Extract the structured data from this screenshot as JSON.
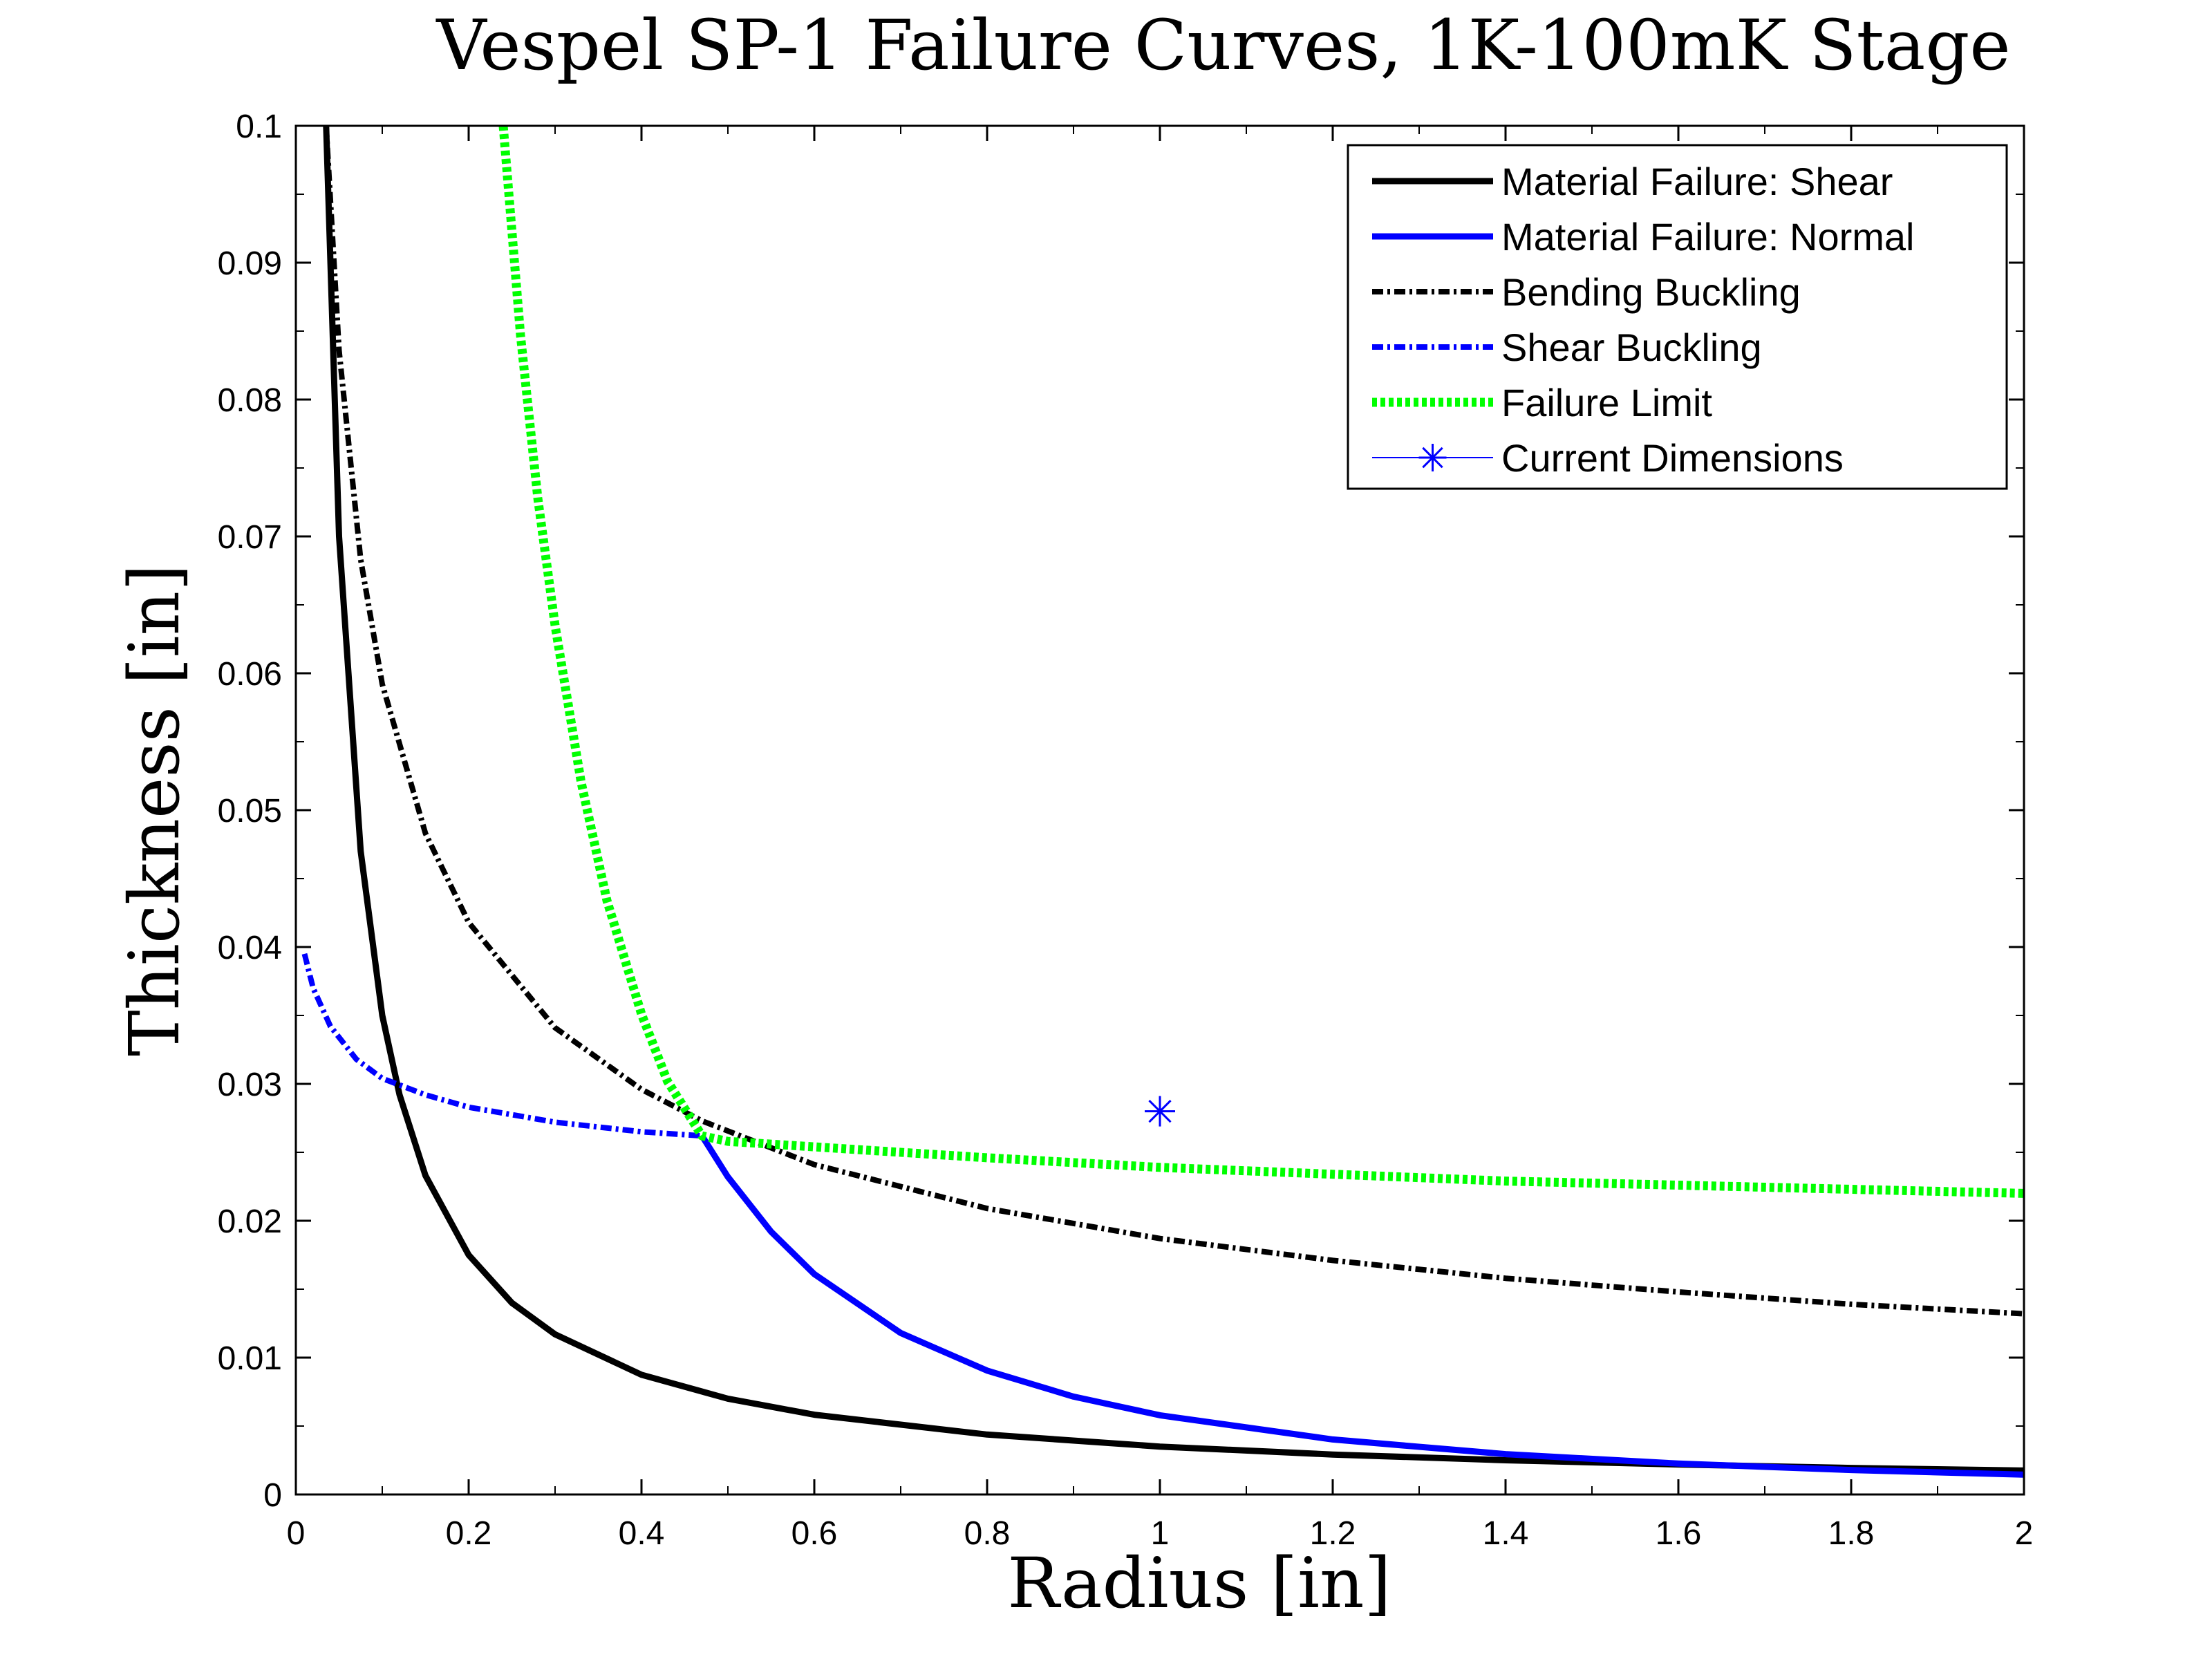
{
  "chart_data": {
    "type": "line",
    "title": "Vespel SP-1 Failure Curves, 1K-100mK Stage",
    "xlabel": "Radius [in]",
    "ylabel": "Thickness [in]",
    "xlim": [
      0,
      2
    ],
    "ylim": [
      0,
      0.1
    ],
    "xticks": [
      0,
      0.2,
      0.4,
      0.6,
      0.8,
      1,
      1.2,
      1.4,
      1.6,
      1.8,
      2
    ],
    "xtick_labels": [
      "0",
      "0.2",
      "0.4",
      "0.6",
      "0.8",
      "1",
      "1.2",
      "1.4",
      "1.6",
      "1.8",
      "2"
    ],
    "yticks": [
      0,
      0.01,
      0.02,
      0.03,
      0.04,
      0.05,
      0.06,
      0.07,
      0.08,
      0.09,
      0.1
    ],
    "ytick_labels": [
      "0",
      "0.01",
      "0.02",
      "0.03",
      "0.04",
      "0.05",
      "0.06",
      "0.07",
      "0.08",
      "0.09",
      "0.1"
    ],
    "grid": false,
    "legend_position": "top-right",
    "series": [
      {
        "name": "Material Failure: Shear",
        "style": "solid",
        "color": "#000000",
        "x": [
          0.035,
          0.05,
          0.075,
          0.1,
          0.12,
          0.15,
          0.2,
          0.25,
          0.3,
          0.4,
          0.5,
          0.6,
          0.8,
          1.0,
          1.2,
          1.4,
          1.6,
          1.8,
          2.0
        ],
        "y": [
          0.1,
          0.07,
          0.047,
          0.035,
          0.0292,
          0.0233,
          0.0175,
          0.014,
          0.0117,
          0.00875,
          0.007,
          0.00583,
          0.00438,
          0.0035,
          0.00292,
          0.0025,
          0.00219,
          0.00194,
          0.00175
        ]
      },
      {
        "name": "Material Failure: Normal",
        "style": "solid",
        "color": "#0000ff",
        "x": [
          0.47,
          0.5,
          0.55,
          0.6,
          0.7,
          0.8,
          0.9,
          1.0,
          1.2,
          1.4,
          1.6,
          1.8,
          2.0
        ],
        "y": [
          0.0262,
          0.0232,
          0.0192,
          0.0161,
          0.0118,
          0.00905,
          0.00715,
          0.00579,
          0.00402,
          0.00295,
          0.00226,
          0.00179,
          0.00145
        ]
      },
      {
        "name": "Bending Buckling",
        "style": "dashdot",
        "color": "#000000",
        "x": [
          0.035,
          0.05,
          0.075,
          0.1,
          0.15,
          0.2,
          0.3,
          0.4,
          0.47,
          0.6,
          0.8,
          1.0,
          1.2,
          1.4,
          1.6,
          1.8,
          2.0
        ],
        "y": [
          0.1,
          0.0836,
          0.0683,
          0.0592,
          0.0483,
          0.0418,
          0.0341,
          0.0296,
          0.0273,
          0.0241,
          0.0209,
          0.0187,
          0.0171,
          0.0158,
          0.0148,
          0.0139,
          0.0132
        ]
      },
      {
        "name": "Shear Buckling",
        "style": "dashdot",
        "color": "#0000ff",
        "x": [
          0.01,
          0.02,
          0.04,
          0.07,
          0.1,
          0.15,
          0.2,
          0.3,
          0.4,
          0.47
        ],
        "y": [
          0.0395,
          0.037,
          0.0342,
          0.0318,
          0.0304,
          0.0292,
          0.0283,
          0.0272,
          0.0265,
          0.0262
        ]
      },
      {
        "name": "Failure Limit",
        "style": "dotted",
        "color": "#00ff00",
        "x": [
          0.24,
          0.26,
          0.28,
          0.3,
          0.33,
          0.36,
          0.4,
          0.43,
          0.47,
          0.5,
          0.6,
          0.8,
          1.0,
          1.2,
          1.4,
          1.6,
          1.8,
          2.0
        ],
        "y": [
          0.1,
          0.0847,
          0.0728,
          0.0635,
          0.0521,
          0.0434,
          0.0351,
          0.0302,
          0.0262,
          0.0258,
          0.0254,
          0.0246,
          0.0239,
          0.0234,
          0.0229,
          0.0226,
          0.0223,
          0.022
        ]
      },
      {
        "name": "Current Dimensions",
        "style": "marker",
        "marker": "asterisk",
        "color": "#0000ff",
        "x": [
          1.0
        ],
        "y": [
          0.028
        ]
      }
    ]
  }
}
